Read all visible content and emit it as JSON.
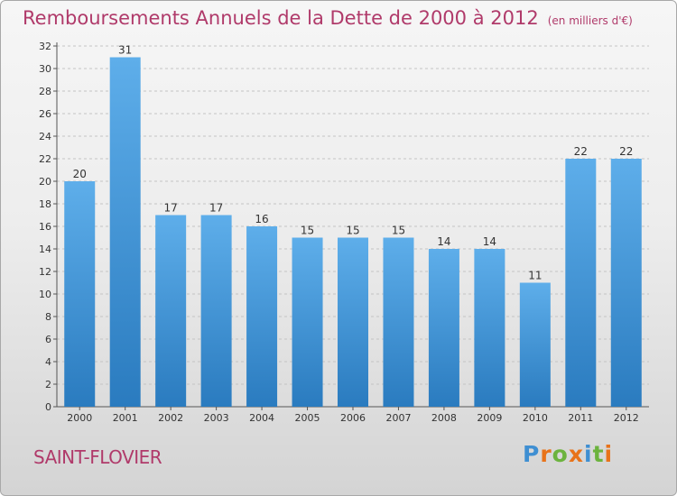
{
  "header": {
    "title": "Remboursements Annuels de la Dette de 2000 à 2012",
    "unit": "(en milliers d'€)"
  },
  "footer": {
    "commune": "SAINT-FLOVIER",
    "logo_letters": [
      "P",
      "r",
      "o",
      "x",
      "i",
      "t",
      "i"
    ]
  },
  "colors": {
    "title": "#b03a6a",
    "bar_top": "#5eaeea",
    "bar_bottom": "#2a7bbf",
    "logo": [
      "#3f8fd2",
      "#e8731a",
      "#6cb33e",
      "#e8731a",
      "#3f8fd2",
      "#6cb33e",
      "#e8731a"
    ]
  },
  "chart_data": {
    "type": "bar",
    "categories": [
      "2000",
      "2001",
      "2002",
      "2003",
      "2004",
      "2005",
      "2006",
      "2007",
      "2008",
      "2009",
      "2010",
      "2011",
      "2012"
    ],
    "values": [
      20,
      31,
      17,
      17,
      16,
      15,
      15,
      15,
      14,
      14,
      11,
      22,
      22
    ],
    "yticks": [
      0,
      2,
      4,
      6,
      8,
      10,
      12,
      14,
      16,
      18,
      20,
      22,
      24,
      26,
      28,
      30,
      32
    ],
    "ylim": [
      0,
      32
    ],
    "grid": true,
    "legend": "none"
  }
}
